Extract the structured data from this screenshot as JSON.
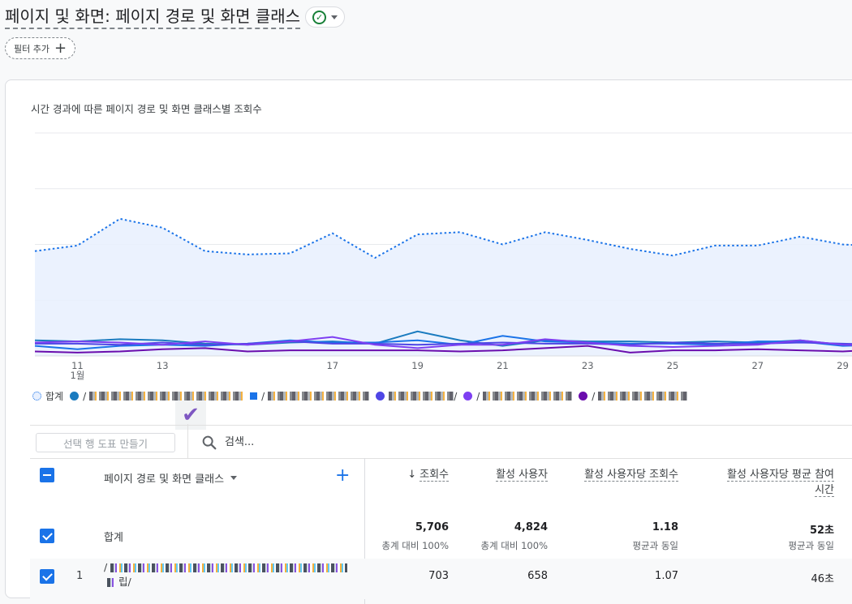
{
  "header": {
    "title": "페이지 및 화면: 페이지 경로 및 화면 클래스",
    "filter_label": "필터 추가"
  },
  "icons": {
    "status": "check-circle-icon",
    "dropdown": "caret-down-icon",
    "add": "plus-icon",
    "search": "search-icon",
    "sort": "arrow-down-icon"
  },
  "colors": {
    "total_line": "#1a73e8",
    "total_fill": "#e8f0fe",
    "series1": "#1a7bbf",
    "series2": "#1a73e8",
    "series3": "#4f46e5",
    "series4": "#7e3ff2",
    "series5": "#6a0dad",
    "checkbox": "#1a73e8"
  },
  "chart_data": {
    "type": "line",
    "title": "시간 경과에 따른 페이지 경로 및 화면 클래스별 조회수",
    "x": [
      "10",
      "11",
      "12",
      "13",
      "14",
      "15",
      "16",
      "17",
      "18",
      "19",
      "20",
      "21",
      "22",
      "23",
      "24",
      "25",
      "26",
      "27",
      "28",
      "29",
      "30"
    ],
    "x_tick_labels": [
      "11",
      "13",
      "17",
      "19",
      "21",
      "23",
      "25",
      "27",
      "29"
    ],
    "x_month_label": "1월",
    "ylim": [
      0,
      400
    ],
    "grid": true,
    "legend_position": "bottom-left",
    "legend_total_label": "합계",
    "series": [
      {
        "name": "합계",
        "style": "dotted-area",
        "values": [
          188,
          198,
          246,
          230,
          188,
          182,
          184,
          220,
          176,
          218,
          222,
          200,
          222,
          208,
          192,
          180,
          198,
          198,
          214,
          200,
          196
        ]
      },
      {
        "values": [
          28,
          26,
          30,
          28,
          22,
          20,
          24,
          26,
          22,
          44,
          28,
          18,
          28,
          26,
          26,
          24,
          26,
          24,
          28,
          20,
          22
        ]
      },
      {
        "values": [
          18,
          12,
          18,
          20,
          18,
          22,
          28,
          24,
          24,
          28,
          20,
          36,
          26,
          24,
          22,
          22,
          20,
          26,
          26,
          18,
          20
        ]
      },
      {
        "values": [
          22,
          22,
          20,
          24,
          20,
          22,
          26,
          22,
          22,
          20,
          22,
          24,
          22,
          22,
          20,
          24,
          22,
          22,
          24,
          22,
          20
        ]
      },
      {
        "values": [
          24,
          26,
          24,
          20,
          26,
          20,
          26,
          34,
          20,
          14,
          20,
          20,
          30,
          24,
          18,
          16,
          18,
          20,
          28,
          20,
          18
        ]
      },
      {
        "values": [
          8,
          6,
          8,
          12,
          14,
          8,
          10,
          10,
          10,
          10,
          8,
          10,
          14,
          18,
          6,
          10,
          10,
          12,
          10,
          8,
          12
        ]
      }
    ]
  },
  "legend": {
    "total_label": "합계",
    "item2_label": "/",
    "item3_label": "/",
    "item4_label": "/",
    "item5_label": "/",
    "item6_label": "/"
  },
  "toolbar": {
    "make_chart_label": "선택 행 도표 만들기",
    "search_placeholder": "검색..."
  },
  "table": {
    "dimension_header": "페이지 경로 및 화면 클래스",
    "metric_headers": [
      "조회수",
      "활성 사용자",
      "활성 사용자당 조회수",
      "활성 사용자당 평균 참여 시간"
    ],
    "total": {
      "label": "합계",
      "values": [
        "5,706",
        "4,824",
        "1.18",
        "52초"
      ],
      "sublabels": [
        "총계 대비 100%",
        "총계 대비 100%",
        "평균과 동일",
        "평균과 동일"
      ]
    },
    "rows": [
      {
        "index": "1",
        "path_prefix": "/",
        "path_suffix": "립/",
        "values": [
          "703",
          "658",
          "1.07",
          "46초"
        ]
      }
    ]
  }
}
